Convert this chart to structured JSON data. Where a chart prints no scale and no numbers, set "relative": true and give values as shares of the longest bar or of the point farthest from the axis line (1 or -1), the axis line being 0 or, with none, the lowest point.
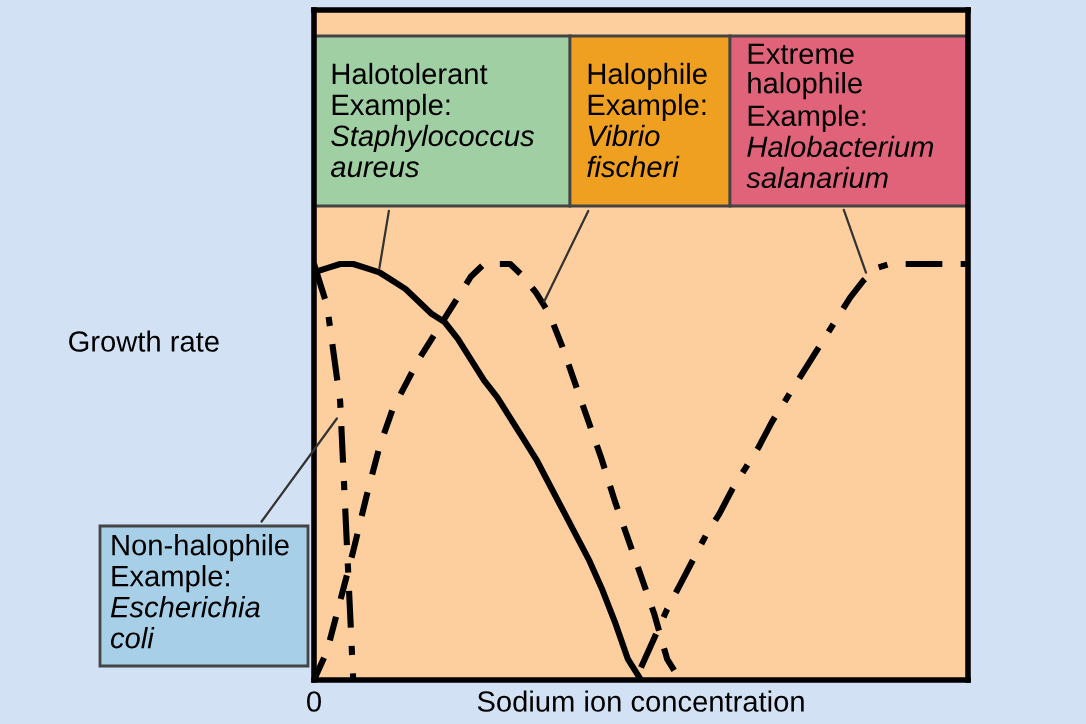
{
  "chart_data": {
    "type": "line",
    "relative": true,
    "xlabel": "Sodium ion concentration",
    "ylabel": "Growth rate",
    "legend": false,
    "marker": "none",
    "categories": [
      null,
      null,
      null,
      null,
      null,
      null,
      null,
      null,
      null,
      null,
      null,
      null,
      null,
      null,
      null,
      null,
      null,
      null,
      null,
      null,
      null,
      null,
      null,
      null,
      null,
      null,
      null,
      null,
      null,
      null,
      null,
      null,
      null,
      null,
      null,
      null,
      null,
      null,
      null,
      null,
      null,
      null,
      null,
      null,
      null,
      null,
      null,
      null,
      null,
      null,
      null
    ],
    "series": [
      {
        "color": "#000000",
        "line_style": "dashdot",
        "values": [
          1,
          0.9,
          0.67,
          0,
          null,
          null,
          null,
          null,
          null,
          null,
          null,
          null,
          null,
          null,
          null,
          null,
          null,
          null,
          null,
          null,
          null,
          null,
          null,
          null,
          null,
          null,
          null,
          null,
          null,
          null,
          null,
          null,
          null,
          null,
          null,
          null,
          null,
          null,
          null,
          null,
          null,
          null,
          null,
          null,
          null,
          null,
          null,
          null,
          null,
          null,
          null
        ]
      },
      {
        "color": "#000000",
        "line_style": "solid",
        "values": [
          0.98,
          0.99,
          1,
          1,
          0.99,
          0.98,
          0.96,
          0.94,
          0.91,
          0.88,
          0.86,
          0.82,
          0.77,
          0.72,
          0.68,
          0.63,
          0.58,
          0.53,
          0.47,
          0.41,
          0.35,
          0.29,
          0.22,
          0.14,
          0.05,
          0,
          null,
          null,
          null,
          null,
          null,
          null,
          null,
          null,
          null,
          null,
          null,
          null,
          null,
          null,
          null,
          null,
          null,
          null,
          null,
          null,
          null,
          null,
          null,
          null,
          null
        ]
      },
      {
        "color": "#000000",
        "line_style": "dashed",
        "values": [
          0,
          0.07,
          0.19,
          0.31,
          0.44,
          0.56,
          0.65,
          0.71,
          0.77,
          0.82,
          0.87,
          0.92,
          0.97,
          1,
          1,
          1,
          0.97,
          0.93,
          0.88,
          0.8,
          0.71,
          0.62,
          0.53,
          0.43,
          0.34,
          0.25,
          0.16,
          0.05,
          0,
          null,
          null,
          null,
          null,
          null,
          null,
          null,
          null,
          null,
          null,
          null,
          null,
          null,
          null,
          null,
          null,
          null,
          null,
          null,
          null,
          null,
          null
        ]
      },
      {
        "color": "#000000",
        "line_style": "dashdot",
        "values": [
          null,
          null,
          null,
          null,
          null,
          null,
          null,
          null,
          null,
          null,
          null,
          null,
          null,
          null,
          null,
          null,
          null,
          null,
          null,
          null,
          null,
          null,
          null,
          null,
          null,
          0.03,
          0.1,
          0.17,
          0.23,
          0.29,
          0.35,
          0.4,
          0.46,
          0.51,
          0.56,
          0.62,
          0.67,
          0.72,
          0.77,
          0.82,
          0.87,
          0.92,
          0.96,
          0.99,
          1,
          1,
          1,
          1,
          1,
          1,
          1
        ]
      }
    ],
    "annotations": [
      "Non-halophile\nExample: Escherichia coli",
      "Halotolerant\nExample: Staphylococcus aureus",
      "Halophile\nExample: Vibrio fischeri",
      "Extreme halophile\nExample: Halobacterium salanarium",
      "0"
    ]
  }
}
